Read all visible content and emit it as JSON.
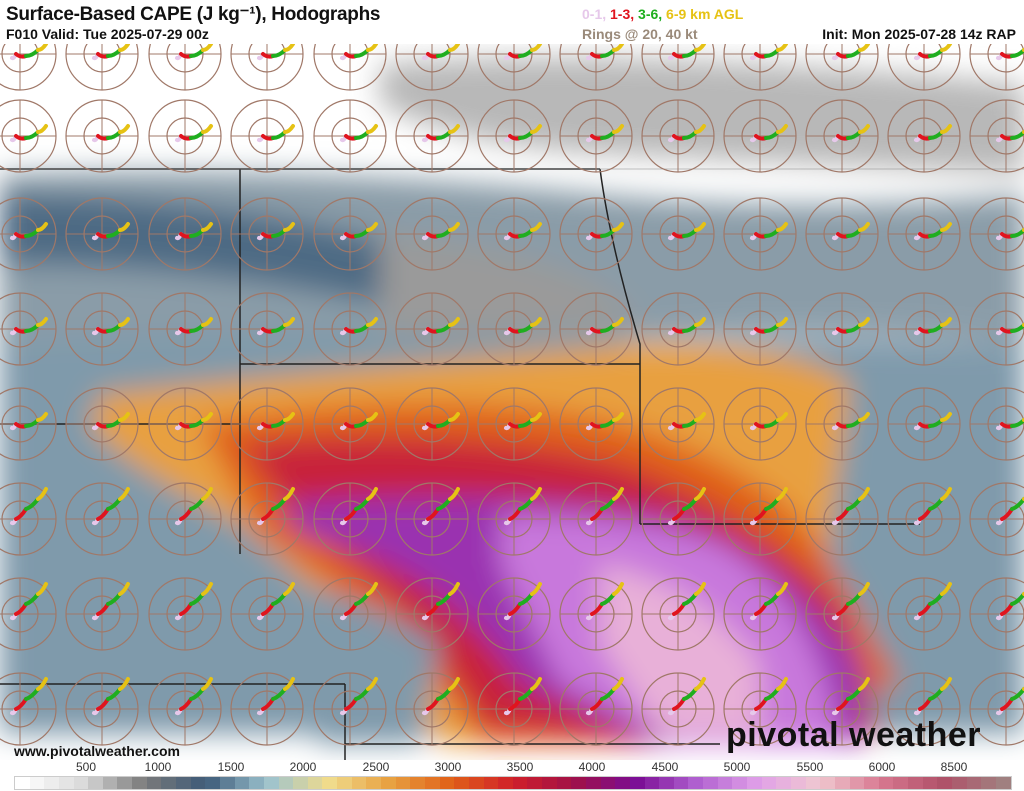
{
  "header": {
    "title": "Surface-Based CAPE (J kg⁻¹), Hodographs",
    "subtitle": "F010 Valid: Tue 2025-07-29 00z",
    "legend": [
      {
        "text": "0-1,",
        "color": "#e6c8ea"
      },
      {
        "text": "1-3,",
        "color": "#e0141e"
      },
      {
        "text": "3-6,",
        "color": "#1fae1f"
      },
      {
        "text": "6-9 km AGL",
        "color": "#e6c214"
      }
    ],
    "rings": "Rings @ 20, 40 kt",
    "init": "Init: Mon 2025-07-28 14z RAP"
  },
  "footer": {
    "website": "www.pivotalweather.com",
    "logo": "pivotal weather"
  },
  "colorbar": {
    "labels": [
      "500",
      "1000",
      "1500",
      "2000",
      "2500",
      "3000",
      "3500",
      "4000",
      "4500",
      "5000",
      "5500",
      "6000",
      "8500"
    ],
    "stops": [
      "#ffffff",
      "#d9d9d9",
      "#7a7a7a",
      "#3d5a78",
      "#9cc3cf",
      "#f0dc8c",
      "#e8a040",
      "#e06018",
      "#d0202a",
      "#a01048",
      "#7a0c94",
      "#b060d0",
      "#e0a0e8",
      "#f0c8d0",
      "#d87890",
      "#b05068",
      "#a08080"
    ]
  },
  "map": {
    "ring_color": "#a07868",
    "hodo_colors": {
      "c01": "#e6c8ea",
      "c13": "#e0141e",
      "c36": "#1fae1f",
      "c69": "#e6c214"
    }
  }
}
